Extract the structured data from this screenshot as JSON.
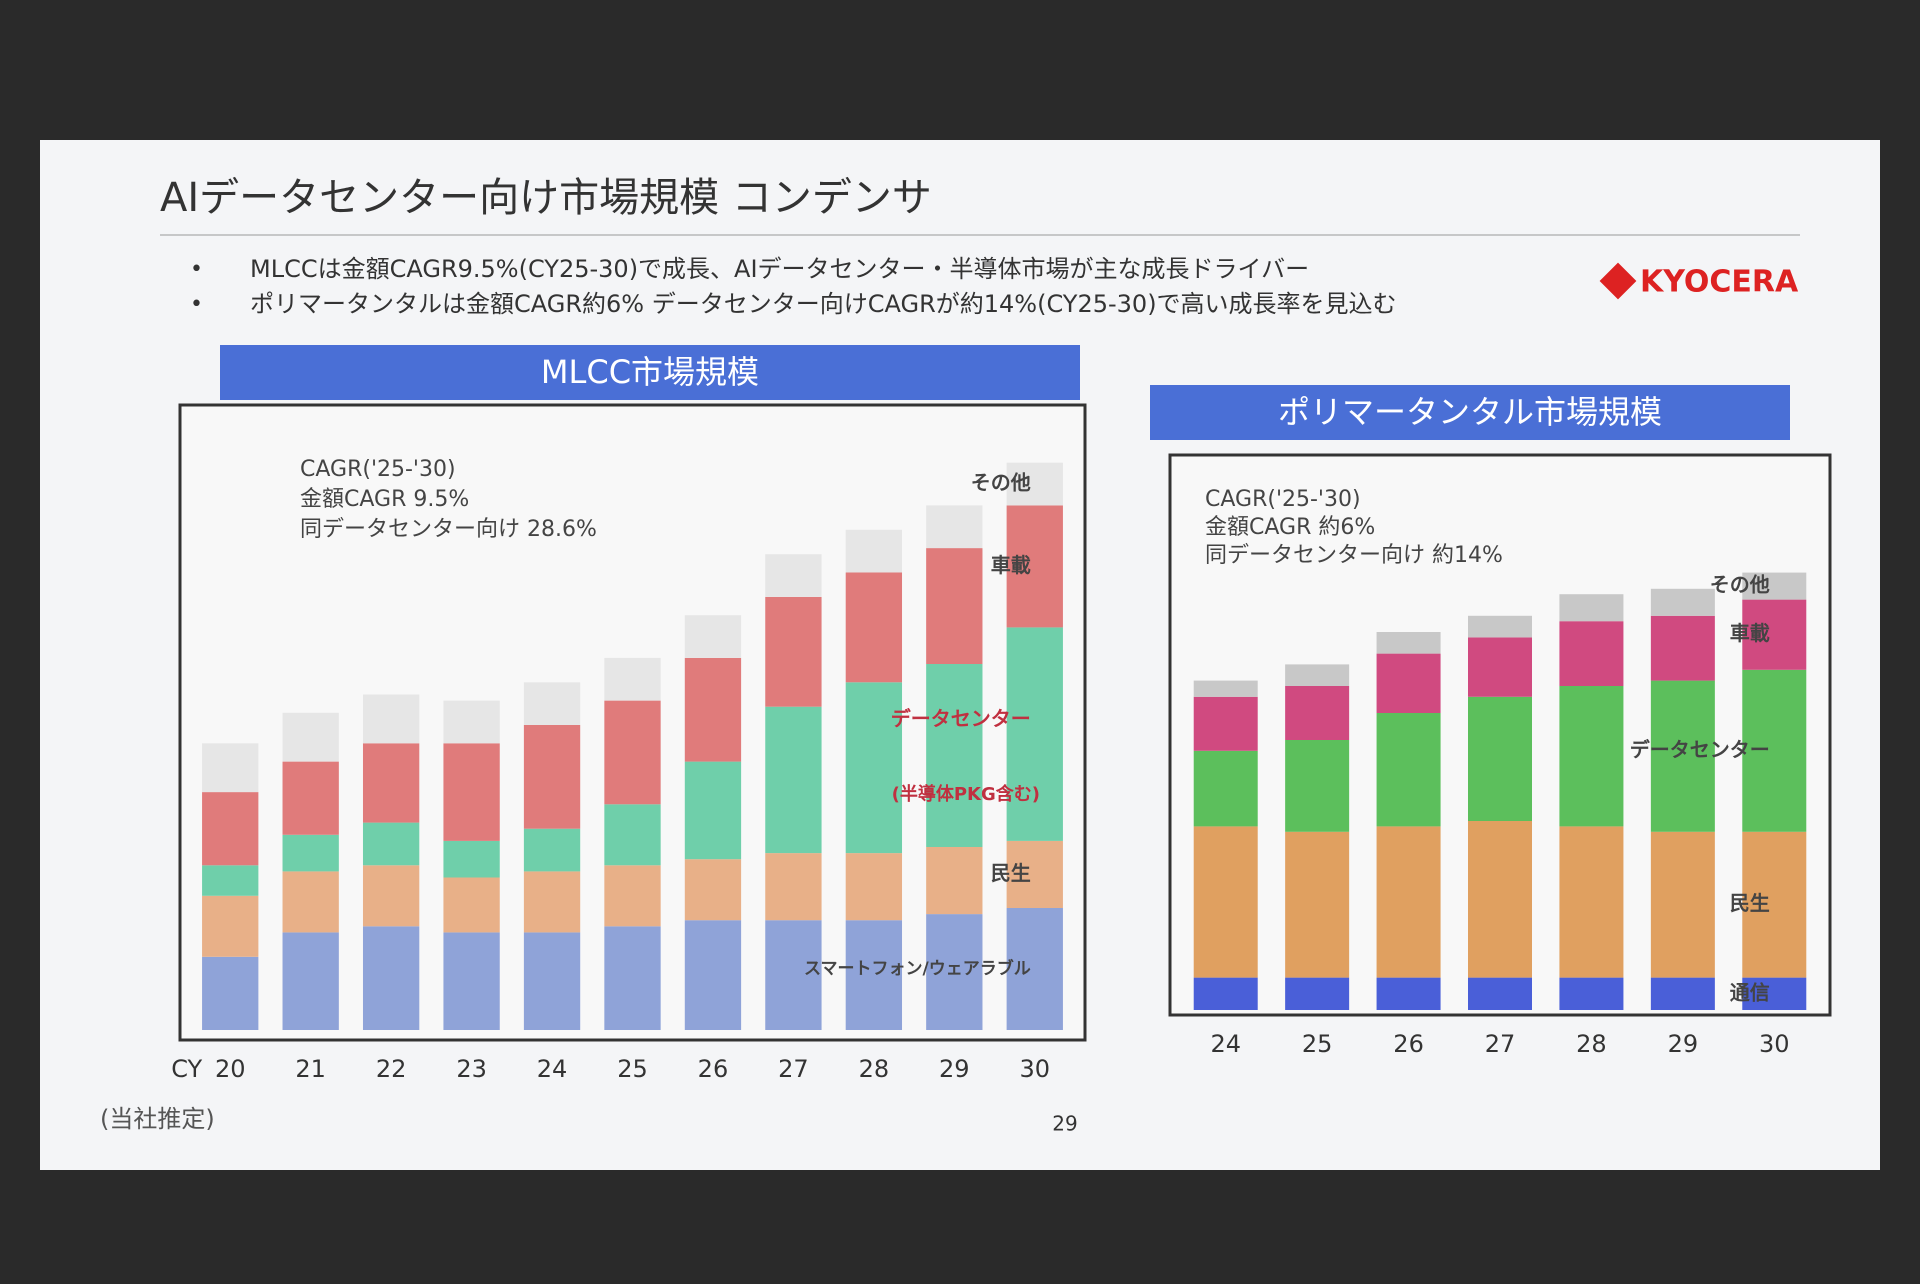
{
  "slide": {
    "title": "AIデータセンター向け市場規模 コンデンサ",
    "bullets": [
      "MLCCは金額CAGR9.5%(CY25-30)で成長、AIデータセンター・半導体市場が主な成長ドライバー",
      "ポリマータンタルは金額CAGR約6% データセンター向けCAGRが約14%(CY25-30)で高い成長率を見込む"
    ],
    "logo": "KYOCERA",
    "note": "(当社推定)",
    "page": "29"
  },
  "chart_data": [
    {
      "type": "stacked-bar",
      "title": "MLCC市場規模",
      "x_label": "CY",
      "categories": [
        "20",
        "21",
        "22",
        "23",
        "24",
        "25",
        "26",
        "27",
        "28",
        "29",
        "30"
      ],
      "annotations": [
        "CAGR('25-'30)",
        "金額CAGR 9.5%",
        "同データセンター向け 28.6%",
        "(半導体PKG含む)"
      ],
      "ylim": [
        0,
        100
      ],
      "series": [
        {
          "name": "スマートフォン/ウェアラブル",
          "color": "#8fa3d8",
          "values": [
            12,
            16,
            17,
            16,
            16,
            17,
            18,
            18,
            18,
            19,
            20
          ]
        },
        {
          "name": "民生",
          "color": "#e8b088",
          "values": [
            10,
            10,
            10,
            9,
            10,
            10,
            10,
            11,
            11,
            11,
            11
          ]
        },
        {
          "name": "データセンター",
          "color": "#6fcfaa",
          "values": [
            5,
            6,
            7,
            6,
            7,
            10,
            16,
            24,
            28,
            30,
            35
          ]
        },
        {
          "name": "車載",
          "color": "#e07b7b",
          "values": [
            12,
            12,
            13,
            16,
            17,
            17,
            17,
            18,
            18,
            19,
            20
          ]
        },
        {
          "name": "その他",
          "color": "#e6e6e6",
          "values": [
            8,
            8,
            8,
            7,
            7,
            7,
            7,
            7,
            7,
            7,
            7
          ]
        }
      ]
    },
    {
      "type": "stacked-bar",
      "title": "ポリマータンタル市場規模",
      "categories": [
        "24",
        "25",
        "26",
        "27",
        "28",
        "29",
        "30"
      ],
      "annotations": [
        "CAGR('25-'30)",
        "金額CAGR 約6%",
        "同データセンター向け 約14%"
      ],
      "ylim": [
        0,
        100
      ],
      "series": [
        {
          "name": "通信",
          "color": "#4a5fd8",
          "values": [
            6,
            6,
            6,
            6,
            6,
            6,
            6
          ]
        },
        {
          "name": "民生",
          "color": "#e0a060",
          "values": [
            28,
            27,
            28,
            29,
            28,
            27,
            27
          ]
        },
        {
          "name": "データセンター",
          "color": "#5cbf5c",
          "values": [
            14,
            17,
            21,
            23,
            26,
            28,
            30
          ]
        },
        {
          "name": "車載",
          "color": "#d04a80",
          "values": [
            10,
            10,
            11,
            11,
            12,
            12,
            13
          ]
        },
        {
          "name": "その他",
          "color": "#c8c8c8",
          "values": [
            3,
            4,
            4,
            4,
            5,
            5,
            5
          ]
        }
      ]
    }
  ]
}
